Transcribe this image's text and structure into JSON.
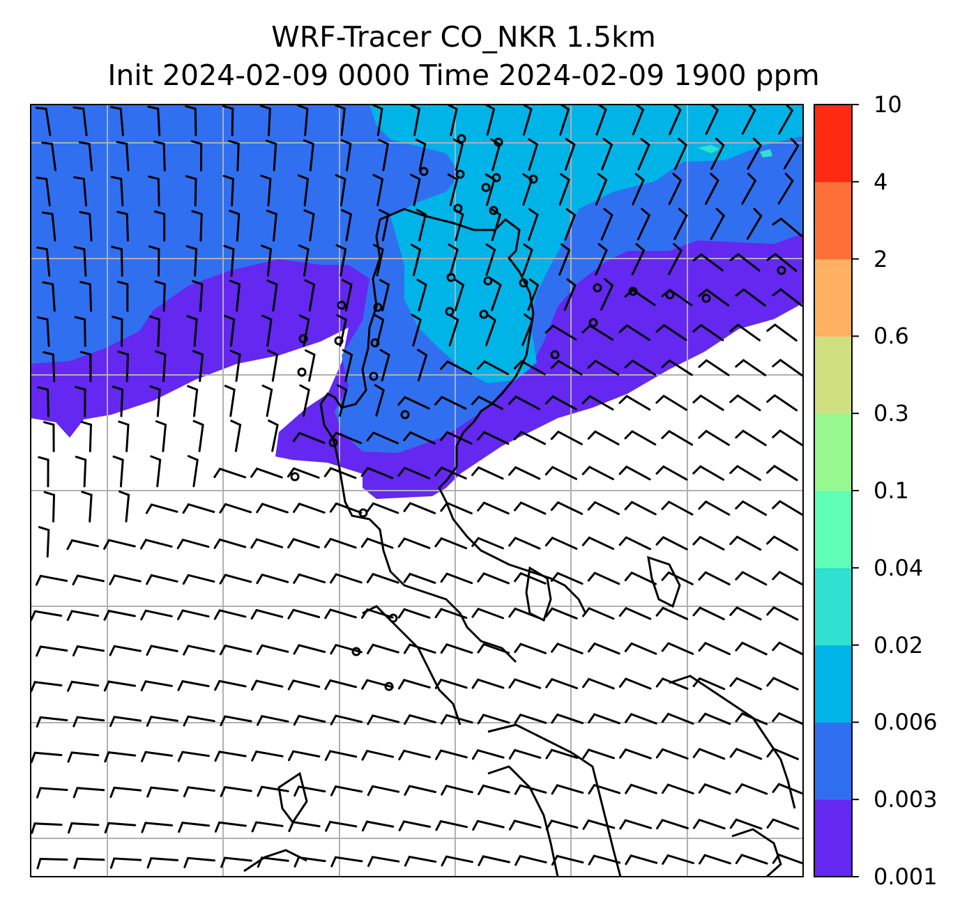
{
  "title": {
    "line1": "WRF-Tracer CO_NKR 1.5km",
    "line2": "Init 2024-02-09 0000 Time 2024-02-09 1900 ppm"
  },
  "colorbar": {
    "levels": [
      "0.001",
      "0.003",
      "0.006",
      "0.02",
      "0.04",
      "0.1",
      "0.3",
      "0.6",
      "2",
      "4",
      "10"
    ],
    "colors": [
      "#6428f0",
      "#3070f0",
      "#00b4e8",
      "#30e0d0",
      "#60ffb8",
      "#98f890",
      "#d0e080",
      "#ffb060",
      "#ff7038",
      "#ff2a12"
    ]
  },
  "map": {
    "variable": "CO tracer concentration",
    "unit": "ppm",
    "gridlines": true,
    "wind_barbs": true,
    "coastlines": true,
    "plume_direction": "upper half of domain, boundary running from west-southwest to east-northeast"
  }
}
